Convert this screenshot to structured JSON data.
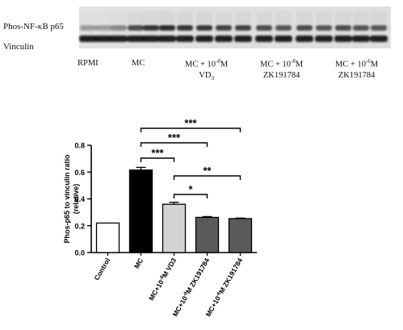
{
  "blot": {
    "bands": [
      {
        "name": "Phos-NF-κB p65"
      },
      {
        "name": "Vinculin"
      }
    ],
    "lanes": [
      {
        "label_line1": "RPMI",
        "label_line2": ""
      },
      {
        "label_line1": "MC",
        "label_line2": ""
      },
      {
        "label_line1": "MC + 10",
        "sup": "-8",
        "label_line1_tail": "M",
        "label_line2": "VD",
        "sub2": "3"
      },
      {
        "label_line1": "MC + 10",
        "sup": "-8",
        "label_line1_tail": "M",
        "label_line2": "ZK191784"
      },
      {
        "label_line1": "MC + 10",
        "sup": "-6",
        "label_line1_tail": "M",
        "label_line2": "ZK191784"
      }
    ]
  },
  "chart_data": {
    "type": "bar",
    "ylabel": "Phos-p65 to vinculin ratio",
    "ylabel2": "(relative)",
    "ylim": [
      0,
      0.8
    ],
    "yticks": [
      "0.0",
      "0.2",
      "0.4",
      "0.6",
      "0.8"
    ],
    "categories": [
      {
        "pre": "Control"
      },
      {
        "pre": "MC"
      },
      {
        "pre": "MC+10",
        "sup": "-8",
        "post": "M VD3"
      },
      {
        "pre": "MC+10",
        "sup": "-8",
        "post": "M ZK191784"
      },
      {
        "pre": "MC+10",
        "sup": "-6",
        "post": "M ZK191784"
      }
    ],
    "values": [
      0.22,
      0.615,
      0.36,
      0.262,
      0.253
    ],
    "errors": [
      0.0,
      0.02,
      0.015,
      0.006,
      0.004
    ],
    "fills": [
      "#ffffff",
      "#000000",
      "#d3d3d3",
      "#5a5a5a",
      "#5a5a5a"
    ],
    "significance": [
      {
        "from": 1,
        "to": 2,
        "label": "***"
      },
      {
        "from": 1,
        "to": 3,
        "label": "***"
      },
      {
        "from": 1,
        "to": 4,
        "label": "***"
      },
      {
        "from": 2,
        "to": 3,
        "label": "*"
      },
      {
        "from": 2,
        "to": 4,
        "label": "**"
      }
    ]
  }
}
